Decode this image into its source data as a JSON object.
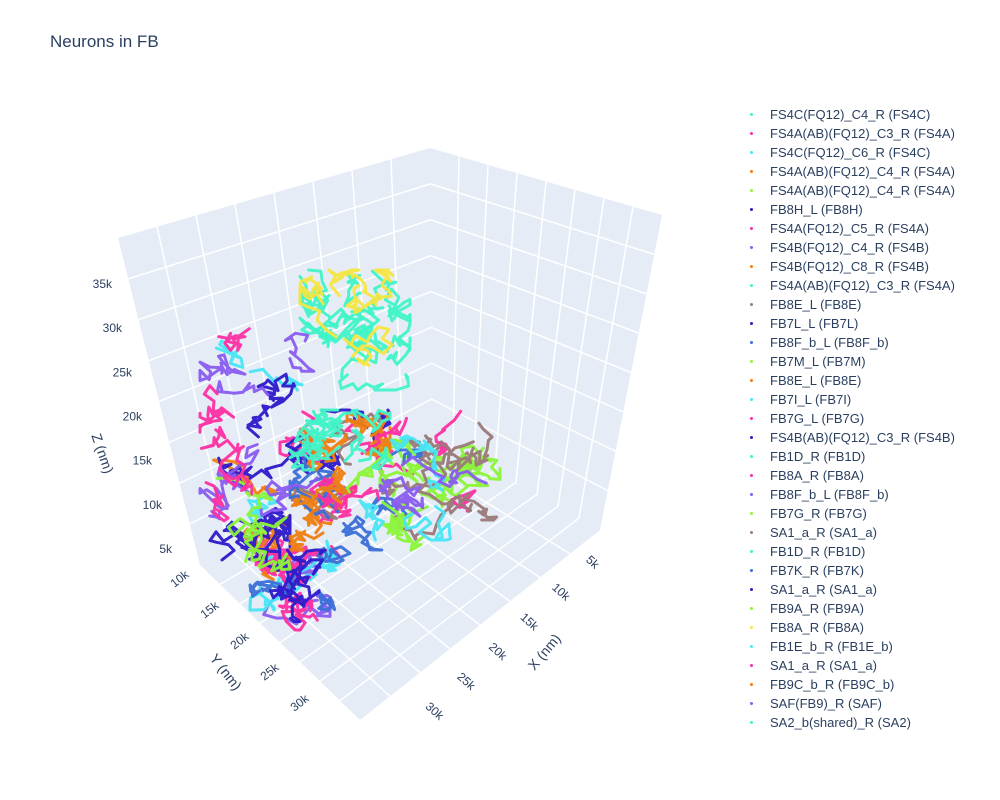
{
  "chart_data": {
    "type": "scatter3d",
    "title": "Neurons in FB",
    "xlabel": "X (nm)",
    "ylabel": "Y (nm)",
    "zlabel": "Z (nm)",
    "x_ticks": [
      "5k",
      "10k",
      "15k",
      "20k",
      "25k",
      "30k"
    ],
    "y_ticks": [
      "10k",
      "15k",
      "20k",
      "25k",
      "30k"
    ],
    "z_ticks": [
      "5k",
      "10k",
      "15k",
      "20k",
      "25k",
      "30k",
      "35k"
    ],
    "legend_placement": "right",
    "background": "#e5ecf6",
    "palette": [
      "#2e1acb",
      "#ff2fa3",
      "#41f5c8",
      "#8cf53a",
      "#f07f12",
      "#48e6f5",
      "#9b7a7a",
      "#8a5cf0",
      "#3b6fd8"
    ],
    "series": [
      {
        "name": "FS4C(FQ12)_C4_R (FS4C)",
        "color": "#41f5c8"
      },
      {
        "name": "FS4A(AB)(FQ12)_C3_R (FS4A)",
        "color": "#ff2fa3"
      },
      {
        "name": "FS4C(FQ12)_C6_R (FS4C)",
        "color": "#48e6f5"
      },
      {
        "name": "FS4A(AB)(FQ12)_C4_R (FS4A)",
        "color": "#f07f12"
      },
      {
        "name": "FS4A(AB)(FQ12)_C4_R (FS4A)",
        "color": "#8cf53a"
      },
      {
        "name": "FB8H_L (FB8H)",
        "color": "#2e1acb"
      },
      {
        "name": "FS4A(FQ12)_C5_R (FS4A)",
        "color": "#ff2fa3"
      },
      {
        "name": "FS4B(FQ12)_C4_R (FS4B)",
        "color": "#8a5cf0"
      },
      {
        "name": "FS4B(FQ12)_C8_R (FS4B)",
        "color": "#f07f12"
      },
      {
        "name": "FS4A(AB)(FQ12)_C3_R (FS4A)",
        "color": "#41f5c8"
      },
      {
        "name": "FB8E_L (FB8E)",
        "color": "#9b7a7a"
      },
      {
        "name": "FB7L_L (FB7L)",
        "color": "#2e1acb"
      },
      {
        "name": "FB8F_b_L (FB8F_b)",
        "color": "#3b6fd8"
      },
      {
        "name": "FB7M_L (FB7M)",
        "color": "#8cf53a"
      },
      {
        "name": "FB8E_L (FB8E)",
        "color": "#f07f12"
      },
      {
        "name": "FB7I_L (FB7I)",
        "color": "#48e6f5"
      },
      {
        "name": "FB7G_L (FB7G)",
        "color": "#ff2fa3"
      },
      {
        "name": "FS4B(AB)(FQ12)_C3_R (FS4B)",
        "color": "#2e1acb"
      },
      {
        "name": "FB1D_R (FB1D)",
        "color": "#41f5c8"
      },
      {
        "name": "FB8A_R (FB8A)",
        "color": "#ff2fa3"
      },
      {
        "name": "FB8F_b_L (FB8F_b)",
        "color": "#8a5cf0"
      },
      {
        "name": "FB7G_R (FB7G)",
        "color": "#8cf53a"
      },
      {
        "name": "SA1_a_R (SA1_a)",
        "color": "#9b7a7a"
      },
      {
        "name": "FB1D_R (FB1D)",
        "color": "#41f5c8"
      },
      {
        "name": "FB7K_R (FB7K)",
        "color": "#3b6fd8"
      },
      {
        "name": "SA1_a_R (SA1_a)",
        "color": "#2e1acb"
      },
      {
        "name": "FB9A_R (FB9A)",
        "color": "#8cf53a"
      },
      {
        "name": "FB8A_R (FB8A)",
        "color": "#f5e642"
      },
      {
        "name": "FB1E_b_R (FB1E_b)",
        "color": "#48e6f5"
      },
      {
        "name": "SA1_a_R (SA1_a)",
        "color": "#ff2fa3"
      },
      {
        "name": "FB9C_b_R (FB9C_b)",
        "color": "#f07f12"
      },
      {
        "name": "SAF(FB9)_R (SAF)",
        "color": "#8a5cf0"
      },
      {
        "name": "SA2_b(shared)_R (SA2)",
        "color": "#41f5c8"
      }
    ]
  }
}
